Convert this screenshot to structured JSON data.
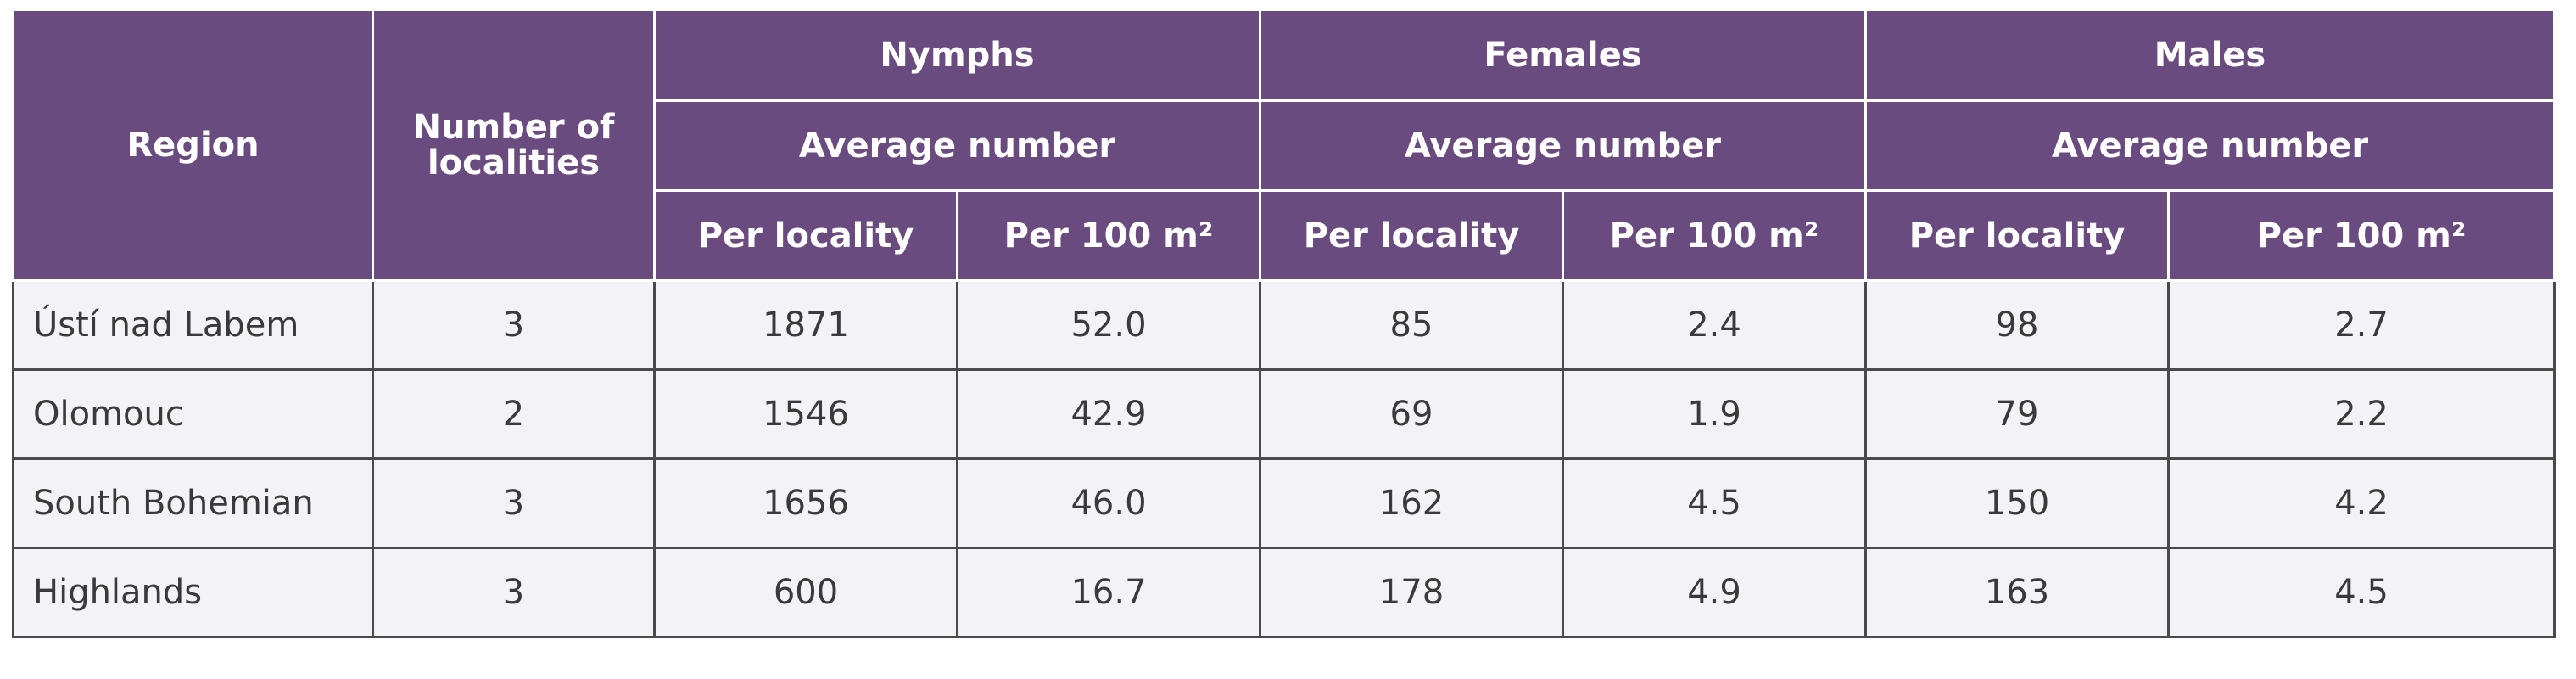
{
  "table": {
    "headers": {
      "region": "Region",
      "localities": "Number of localities",
      "groups": [
        {
          "label": "Nymphs",
          "sub": "Average number",
          "col1": "Per locality",
          "col2": "Per 100 m²"
        },
        {
          "label": "Females",
          "sub": "Average number",
          "col1": "Per locality",
          "col2": "Per 100 m²"
        },
        {
          "label": "Males",
          "sub": "Average number",
          "col1": "Per locality",
          "col2": "Per 100 m²"
        }
      ]
    },
    "rows": [
      {
        "region": "Ústí nad Labem",
        "localities": "3",
        "nymphs_loc": "1871",
        "nymphs_100": "52.0",
        "females_loc": "85",
        "females_100": "2.4",
        "males_loc": "98",
        "males_100": "2.7"
      },
      {
        "region": "Olomouc",
        "localities": "2",
        "nymphs_loc": "1546",
        "nymphs_100": "42.9",
        "females_loc": "69",
        "females_100": "1.9",
        "males_loc": "79",
        "males_100": "2.2"
      },
      {
        "region": "South Bohemian",
        "localities": "3",
        "nymphs_loc": "1656",
        "nymphs_100": "46.0",
        "females_loc": "162",
        "females_100": "4.5",
        "males_loc": "150",
        "males_100": "4.2"
      },
      {
        "region": "Highlands",
        "localities": "3",
        "nymphs_loc": "600",
        "nymphs_100": "16.7",
        "females_loc": "178",
        "females_100": "4.9",
        "males_loc": "163",
        "males_100": "4.5"
      }
    ]
  },
  "colors": {
    "header_bg": "#6a4b80",
    "header_text": "#ffffff",
    "body_bg": "#f3f2f6",
    "body_text": "#3a3a3a"
  }
}
